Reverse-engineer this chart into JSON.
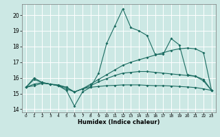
{
  "title": "",
  "xlabel": "Humidex (Indice chaleur)",
  "ylabel": "",
  "xlim": [
    -0.5,
    23.5
  ],
  "ylim": [
    13.8,
    20.7
  ],
  "yticks": [
    14,
    15,
    16,
    17,
    18,
    19,
    20
  ],
  "xticks": [
    0,
    1,
    2,
    3,
    4,
    5,
    6,
    7,
    8,
    9,
    10,
    11,
    12,
    13,
    14,
    15,
    16,
    17,
    18,
    19,
    20,
    21,
    22,
    23
  ],
  "bg_color": "#cce8e4",
  "grid_color": "#ffffff",
  "line_color": "#1a6b60",
  "series": [
    {
      "x": [
        0,
        1,
        2,
        3,
        4,
        5,
        6,
        7,
        8,
        9,
        10,
        11,
        12,
        13,
        14,
        15,
        16,
        17,
        18,
        19,
        20,
        21,
        22,
        23
      ],
      "y": [
        15.4,
        16.0,
        15.7,
        15.6,
        15.5,
        15.2,
        14.2,
        15.1,
        15.4,
        16.3,
        18.2,
        19.3,
        20.4,
        19.2,
        19.0,
        18.7,
        17.5,
        17.5,
        18.5,
        18.1,
        16.2,
        16.1,
        15.9,
        15.2
      ]
    },
    {
      "x": [
        0,
        1,
        2,
        3,
        4,
        5,
        6,
        7,
        8,
        9,
        10,
        11,
        12,
        13,
        14,
        15,
        16,
        17,
        18,
        19,
        20,
        21,
        22,
        23
      ],
      "y": [
        15.4,
        15.9,
        15.7,
        15.6,
        15.5,
        15.3,
        15.1,
        15.3,
        15.6,
        15.9,
        16.2,
        16.5,
        16.8,
        17.0,
        17.15,
        17.3,
        17.45,
        17.6,
        17.75,
        17.85,
        17.9,
        17.85,
        17.6,
        15.2
      ]
    },
    {
      "x": [
        0,
        1,
        2,
        3,
        4,
        5,
        6,
        7,
        8,
        9,
        10,
        11,
        12,
        13,
        14,
        15,
        16,
        17,
        18,
        19,
        20,
        21,
        22,
        23
      ],
      "y": [
        15.4,
        15.6,
        15.7,
        15.6,
        15.5,
        15.4,
        15.1,
        15.3,
        15.5,
        15.75,
        15.95,
        16.15,
        16.3,
        16.35,
        16.4,
        16.4,
        16.35,
        16.3,
        16.25,
        16.2,
        16.15,
        16.1,
        15.8,
        15.2
      ]
    },
    {
      "x": [
        0,
        1,
        2,
        3,
        4,
        5,
        6,
        7,
        8,
        9,
        10,
        11,
        12,
        13,
        14,
        15,
        16,
        17,
        18,
        19,
        20,
        21,
        22,
        23
      ],
      "y": [
        15.4,
        15.5,
        15.65,
        15.6,
        15.55,
        15.4,
        15.1,
        15.3,
        15.4,
        15.45,
        15.5,
        15.52,
        15.55,
        15.55,
        15.55,
        15.52,
        15.5,
        15.5,
        15.48,
        15.45,
        15.42,
        15.38,
        15.3,
        15.2
      ]
    }
  ]
}
